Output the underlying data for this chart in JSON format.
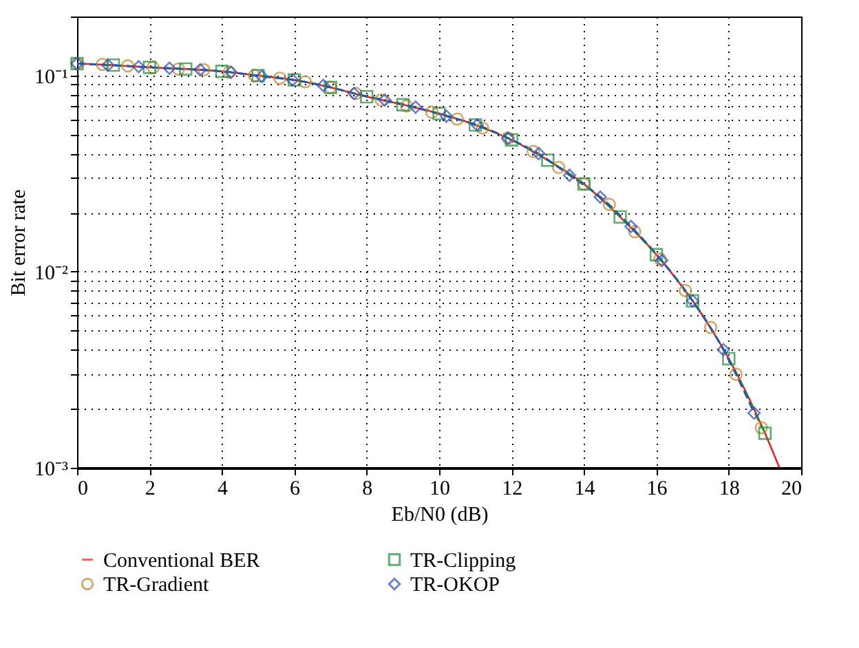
{
  "chart_data": {
    "type": "line",
    "xlabel": "Eb/N0 (dB)",
    "ylabel": "Bit error rate",
    "log": true,
    "grid": true,
    "legend": "bottom",
    "xlim": [
      0,
      20
    ],
    "xticks": [
      0,
      2,
      4,
      6,
      8,
      10,
      12,
      14,
      16,
      18,
      20
    ],
    "ylim": [
      0.001,
      0.2
    ],
    "yticks": [
      {
        "value": 0.001,
        "label": "10⁻³"
      },
      {
        "value": 0.002,
        "label": null
      },
      {
        "value": 0.003,
        "label": null
      },
      {
        "value": 0.004,
        "label": null
      },
      {
        "value": 0.005,
        "label": null
      },
      {
        "value": 0.006,
        "label": null
      },
      {
        "value": 0.007,
        "label": null
      },
      {
        "value": 0.008,
        "label": null
      },
      {
        "value": 0.009,
        "label": null
      },
      {
        "value": 0.01,
        "label": "10⁻²"
      },
      {
        "value": 0.02,
        "label": null
      },
      {
        "value": 0.03,
        "label": null
      },
      {
        "value": 0.04,
        "label": null
      },
      {
        "value": 0.05,
        "label": null
      },
      {
        "value": 0.06,
        "label": null
      },
      {
        "value": 0.07,
        "label": null
      },
      {
        "value": 0.08,
        "label": null
      },
      {
        "value": 0.09,
        "label": null
      },
      {
        "value": 0.1,
        "label": "10⁻¹"
      },
      {
        "value": 0.2,
        "label": null
      }
    ],
    "series": [
      {
        "name": "Conventional BER",
        "color": "#e8231f",
        "marker": "none",
        "line_style": "solid",
        "x": [
          0,
          1,
          2,
          3,
          4,
          5,
          6,
          7,
          8,
          9,
          10,
          11,
          12,
          13,
          14,
          15,
          16,
          17,
          18,
          19,
          19.4
        ],
        "values": [
          0.115,
          0.113,
          0.11,
          0.108,
          0.105,
          0.1,
          0.095,
          0.087,
          0.078,
          0.071,
          0.064,
          0.056,
          0.047,
          0.037,
          0.028,
          0.019,
          0.0122,
          0.0071,
          0.0036,
          0.0015,
          0.001
        ]
      },
      {
        "name": "TR-Gradient",
        "color": "#c0862c",
        "marker": "circle",
        "line_style": "dashed",
        "x": [
          0,
          0.7,
          1.4,
          2.1,
          2.8,
          3.5,
          4.2,
          4.9,
          5.6,
          6.3,
          7,
          7.7,
          8.4,
          9.1,
          9.8,
          10.5,
          11.2,
          11.9,
          12.6,
          13.3,
          14,
          14.7,
          15.4,
          16.1,
          16.8,
          17.5,
          18.2,
          18.9
        ],
        "values": [
          0.115,
          0.114,
          0.112,
          0.11,
          0.108,
          0.107,
          0.104,
          0.1,
          0.097,
          0.093,
          0.087,
          0.081,
          0.075,
          0.07,
          0.065,
          0.06,
          0.054,
          0.048,
          0.041,
          0.034,
          0.028,
          0.022,
          0.016,
          0.0116,
          0.008,
          0.0052,
          0.003,
          0.0016
        ]
      },
      {
        "name": "TR-Clipping",
        "color": "#1f8a3c",
        "marker": "square",
        "line_style": "dashed",
        "x": [
          0,
          1,
          2,
          3,
          4,
          5,
          6,
          7,
          8,
          9,
          10,
          11,
          12,
          13,
          14,
          15,
          16,
          17,
          18,
          19
        ],
        "values": [
          0.115,
          0.113,
          0.11,
          0.108,
          0.105,
          0.1,
          0.095,
          0.087,
          0.078,
          0.071,
          0.064,
          0.056,
          0.047,
          0.037,
          0.028,
          0.019,
          0.0122,
          0.0071,
          0.0036,
          0.0015
        ]
      },
      {
        "name": "TR-OKOP",
        "color": "#2c4fb8",
        "marker": "diamond",
        "line_style": "dashed",
        "x": [
          0,
          0.85,
          1.7,
          2.55,
          3.4,
          4.25,
          5.1,
          5.95,
          6.8,
          7.65,
          8.5,
          9.35,
          10.2,
          11.05,
          11.9,
          12.75,
          13.6,
          14.45,
          15.3,
          16.15,
          17,
          17.85,
          18.7
        ],
        "values": [
          0.115,
          0.113,
          0.111,
          0.109,
          0.107,
          0.104,
          0.099,
          0.095,
          0.089,
          0.081,
          0.075,
          0.069,
          0.062,
          0.056,
          0.048,
          0.04,
          0.031,
          0.024,
          0.017,
          0.0114,
          0.0071,
          0.004,
          0.0019
        ]
      }
    ]
  }
}
